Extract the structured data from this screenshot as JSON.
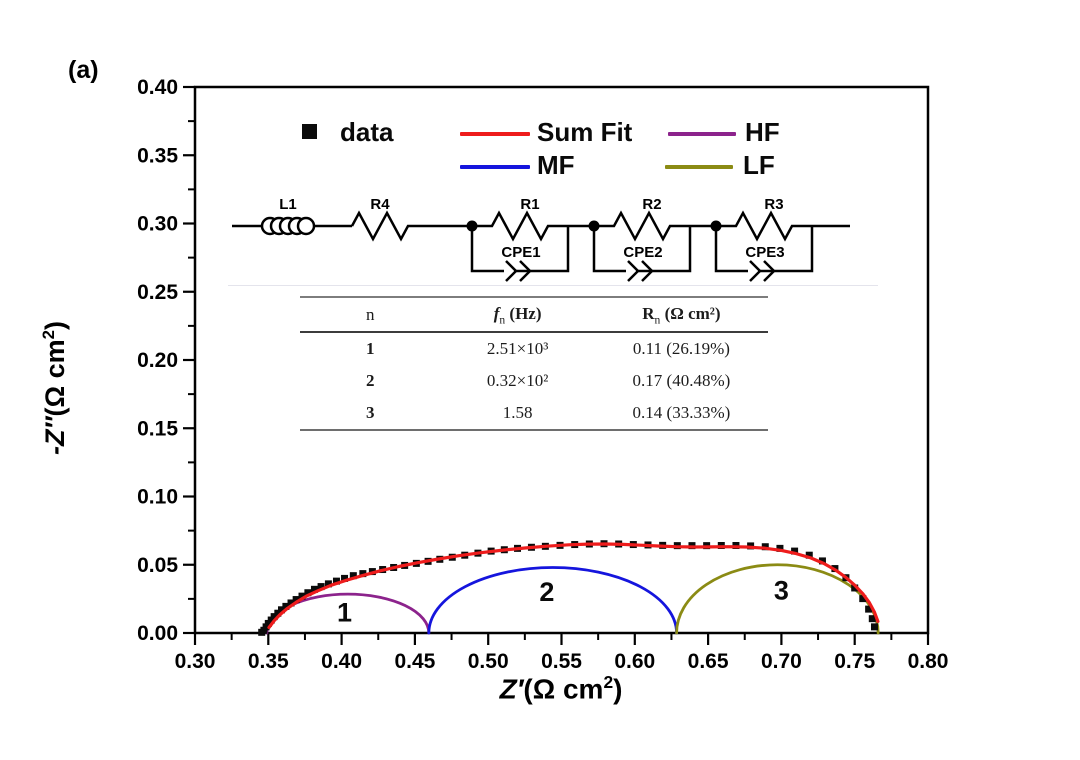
{
  "panel_label": "(a)",
  "axes": {
    "x_title": {
      "main": "Z′",
      "unit_pre": "(Ω cm",
      "sup": "2",
      "unit_post": ")"
    },
    "y_title": {
      "main": "-Z″",
      "unit_pre": "(Ω cm",
      "sup": "2",
      "unit_post": ")"
    }
  },
  "legend": {
    "items": [
      {
        "label": "data",
        "swatch": "square",
        "color": "#0b0b0b"
      },
      {
        "label": "Sum Fit",
        "swatch": "line",
        "color": "#ee1c1c"
      },
      {
        "label": "HF",
        "swatch": "line",
        "color": "#8c238c"
      },
      {
        "label": "MF",
        "swatch": "line",
        "color": "#1515dd"
      },
      {
        "label": "LF",
        "swatch": "line",
        "color": "#8b8b14"
      }
    ]
  },
  "circuit": {
    "l1": "L1",
    "r4": "R4",
    "r1": "R1",
    "r2": "R2",
    "r3": "R3",
    "cpe1": "CPE1",
    "cpe2": "CPE2",
    "cpe3": "CPE3"
  },
  "table": {
    "headers": [
      {
        "main": "n",
        "sub": "",
        "unit": ""
      },
      {
        "main": "f",
        "sub": "n",
        "unit": "(Hz)"
      },
      {
        "main": "R",
        "sub": "n",
        "unit": "(Ω cm²)"
      }
    ],
    "rows": [
      [
        "1",
        "2.51×10³",
        "0.11 (26.19%)"
      ],
      [
        "2",
        "0.32×10²",
        "0.17 (40.48%)"
      ],
      [
        "3",
        "1.58",
        "0.14 (33.33%)"
      ]
    ]
  },
  "chart_data": {
    "type": "scatter+line",
    "title": "",
    "xlabel": "Z′(Ω cm²)",
    "ylabel": "-Z″(Ω cm²)",
    "xlim": [
      0.3,
      0.8
    ],
    "ylim": [
      0.0,
      0.4
    ],
    "grid": false,
    "legend_position": "top-inside",
    "x_ticks": {
      "labels": [
        "0.30",
        "0.35",
        "0.40",
        "0.45",
        "0.50",
        "0.55",
        "0.60",
        "0.65",
        "0.70",
        "0.75",
        "0.80"
      ],
      "minor_step": 0.025
    },
    "y_ticks": {
      "labels": [
        "0.00",
        "0.05",
        "0.10",
        "0.15",
        "0.20",
        "0.25",
        "0.30",
        "0.35",
        "0.40"
      ],
      "minor_step": 0.025
    },
    "series": [
      {
        "name": "data",
        "type": "scatter",
        "marker": "square",
        "color": "#0b0b0b",
        "points": [
          [
            0.3455,
            0.0005
          ],
          [
            0.347,
            0.002
          ],
          [
            0.3485,
            0.0045
          ],
          [
            0.35,
            0.007
          ],
          [
            0.352,
            0.0095
          ],
          [
            0.354,
            0.012
          ],
          [
            0.3565,
            0.0145
          ],
          [
            0.359,
            0.017
          ],
          [
            0.362,
            0.0195
          ],
          [
            0.3655,
            0.022
          ],
          [
            0.369,
            0.0245
          ],
          [
            0.373,
            0.027
          ],
          [
            0.377,
            0.0295
          ],
          [
            0.3815,
            0.032
          ],
          [
            0.386,
            0.034
          ],
          [
            0.391,
            0.036
          ],
          [
            0.3965,
            0.038
          ],
          [
            0.402,
            0.04
          ],
          [
            0.408,
            0.042
          ],
          [
            0.4145,
            0.0435
          ],
          [
            0.421,
            0.045
          ],
          [
            0.428,
            0.0465
          ],
          [
            0.4355,
            0.048
          ],
          [
            0.443,
            0.0495
          ],
          [
            0.451,
            0.051
          ],
          [
            0.459,
            0.0525
          ],
          [
            0.467,
            0.054
          ],
          [
            0.4755,
            0.0555
          ],
          [
            0.484,
            0.057
          ],
          [
            0.493,
            0.0585
          ],
          [
            0.502,
            0.06
          ],
          [
            0.511,
            0.061
          ],
          [
            0.52,
            0.062
          ],
          [
            0.5295,
            0.0628
          ],
          [
            0.539,
            0.0635
          ],
          [
            0.549,
            0.0642
          ],
          [
            0.559,
            0.0648
          ],
          [
            0.569,
            0.0652
          ],
          [
            0.579,
            0.0654
          ],
          [
            0.589,
            0.0652
          ],
          [
            0.599,
            0.0648
          ],
          [
            0.609,
            0.0645
          ],
          [
            0.619,
            0.0642
          ],
          [
            0.629,
            0.064
          ],
          [
            0.639,
            0.064
          ],
          [
            0.649,
            0.064
          ],
          [
            0.659,
            0.0641
          ],
          [
            0.669,
            0.0641
          ],
          [
            0.679,
            0.0638
          ],
          [
            0.689,
            0.0632
          ],
          [
            0.699,
            0.062
          ],
          [
            0.709,
            0.06
          ],
          [
            0.719,
            0.057
          ],
          [
            0.728,
            0.0528
          ],
          [
            0.7365,
            0.0472
          ],
          [
            0.744,
            0.0405
          ],
          [
            0.75,
            0.033
          ],
          [
            0.7555,
            0.0252
          ],
          [
            0.7595,
            0.0175
          ],
          [
            0.762,
            0.0105
          ],
          [
            0.7635,
            0.0045
          ]
        ]
      },
      {
        "name": "Sum Fit",
        "type": "line",
        "color": "#ee1c1c",
        "points": [
          [
            0.3505,
            0.004
          ],
          [
            0.354,
            0.009
          ],
          [
            0.358,
            0.0135
          ],
          [
            0.363,
            0.018
          ],
          [
            0.369,
            0.0225
          ],
          [
            0.376,
            0.027
          ],
          [
            0.384,
            0.031
          ],
          [
            0.393,
            0.035
          ],
          [
            0.403,
            0.0385
          ],
          [
            0.414,
            0.042
          ],
          [
            0.426,
            0.0455
          ],
          [
            0.439,
            0.0487
          ],
          [
            0.452,
            0.0515
          ],
          [
            0.466,
            0.0542
          ],
          [
            0.48,
            0.0566
          ],
          [
            0.495,
            0.0588
          ],
          [
            0.51,
            0.0607
          ],
          [
            0.525,
            0.0623
          ],
          [
            0.54,
            0.0636
          ],
          [
            0.555,
            0.0646
          ],
          [
            0.568,
            0.0651
          ],
          [
            0.58,
            0.0652
          ],
          [
            0.592,
            0.0649
          ],
          [
            0.604,
            0.0643
          ],
          [
            0.616,
            0.0637
          ],
          [
            0.628,
            0.0632
          ],
          [
            0.64,
            0.063
          ],
          [
            0.652,
            0.0631
          ],
          [
            0.664,
            0.0632
          ],
          [
            0.676,
            0.063
          ],
          [
            0.688,
            0.0622
          ],
          [
            0.7,
            0.0605
          ],
          [
            0.71,
            0.0582
          ],
          [
            0.72,
            0.055
          ],
          [
            0.729,
            0.0509
          ],
          [
            0.737,
            0.0461
          ],
          [
            0.744,
            0.0407
          ],
          [
            0.75,
            0.035
          ],
          [
            0.7555,
            0.0288
          ],
          [
            0.76,
            0.0222
          ],
          [
            0.7635,
            0.0152
          ],
          [
            0.7658,
            0.0085
          ]
        ]
      },
      {
        "name": "HF",
        "type": "semicircle",
        "color": "#8c238c",
        "x_start": 0.349,
        "x_end": 0.4595,
        "height": 0.0285,
        "label": "1",
        "label_x": 0.402,
        "label_y": 0.015
      },
      {
        "name": "MF",
        "type": "semicircle",
        "color": "#1515dd",
        "x_start": 0.4595,
        "x_end": 0.6285,
        "height": 0.048,
        "label": "2",
        "label_x": 0.54,
        "label_y": 0.03
      },
      {
        "name": "LF",
        "type": "semicircle",
        "color": "#8b8b14",
        "x_start": 0.6285,
        "x_end": 0.766,
        "height": 0.05,
        "label": "3",
        "label_x": 0.7,
        "label_y": 0.031
      }
    ]
  }
}
